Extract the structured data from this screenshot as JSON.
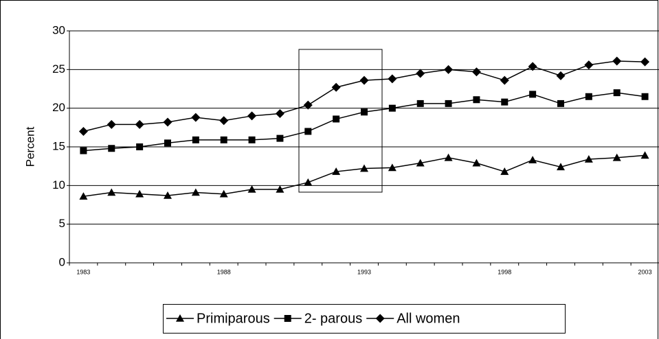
{
  "chart_data": {
    "type": "line",
    "ylabel": "Percent",
    "categories": [
      "1983",
      null,
      null,
      null,
      null,
      "1988",
      null,
      null,
      null,
      null,
      "1993",
      null,
      null,
      null,
      null,
      "1998",
      null,
      null,
      null,
      null,
      "2003"
    ],
    "series": [
      {
        "name": "Primiparous",
        "color": "#000000",
        "marker": "triangle",
        "values": [
          8.6,
          9.1,
          8.9,
          8.7,
          9.1,
          8.9,
          9.5,
          9.5,
          10.4,
          11.8,
          12.2,
          12.3,
          12.9,
          13.6,
          12.9,
          11.8,
          13.3,
          12.4,
          13.4,
          13.6,
          13.9
        ]
      },
      {
        "name": "2- parous",
        "color": "#000000",
        "marker": "square",
        "values": [
          14.5,
          14.8,
          15.0,
          15.5,
          15.9,
          15.9,
          15.9,
          16.1,
          17.0,
          18.6,
          19.5,
          20.0,
          20.6,
          20.6,
          21.1,
          20.8,
          21.8,
          20.6,
          21.5,
          22.0,
          21.5
        ]
      },
      {
        "name": "All women",
        "color": "#000000",
        "marker": "diamond",
        "values": [
          17.0,
          17.9,
          17.9,
          18.2,
          18.8,
          18.4,
          19.0,
          19.3,
          20.4,
          22.7,
          23.6,
          23.8,
          24.5,
          25.0,
          24.7,
          23.6,
          25.4,
          24.2,
          25.6,
          26.1,
          26.0
        ]
      }
    ],
    "ylim": [
      0,
      30
    ],
    "yticks": [
      0,
      5,
      10,
      15,
      20,
      25,
      30
    ],
    "grid": true,
    "legend": "bottom"
  }
}
